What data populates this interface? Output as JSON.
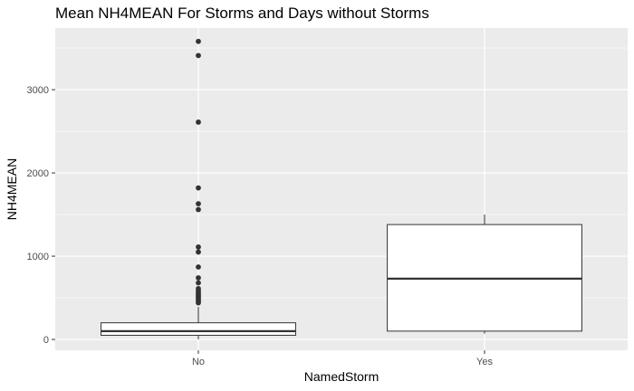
{
  "chart_data": {
    "type": "boxplot",
    "title": "Mean NH4MEAN For Storms and Days without Storms",
    "xlabel": "NamedStorm",
    "ylabel": "NH4MEAN",
    "categories": [
      "No",
      "Yes"
    ],
    "ylim": [
      -130,
      3740
    ],
    "yticks": [
      0,
      1000,
      2000,
      3000
    ],
    "grid": true,
    "boxes": [
      {
        "category": "No",
        "whisker_low": 0,
        "q1": 50,
        "median": 100,
        "q3": 200,
        "whisker_high": 390,
        "outliers": [
          3580,
          3410,
          2610,
          1820,
          1630,
          1560,
          1110,
          1050,
          870,
          740,
          680,
          610,
          580,
          560,
          540,
          520,
          500,
          480,
          460,
          440
        ]
      },
      {
        "category": "Yes",
        "whisker_low": 70,
        "q1": 100,
        "median": 730,
        "q3": 1380,
        "whisker_high": 1500,
        "outliers": []
      }
    ],
    "colors": {
      "panel": "#ebebeb",
      "grid": "#ffffff",
      "box_fill": "#ffffff",
      "box_line": "#333333",
      "outlier": "#333333"
    }
  }
}
